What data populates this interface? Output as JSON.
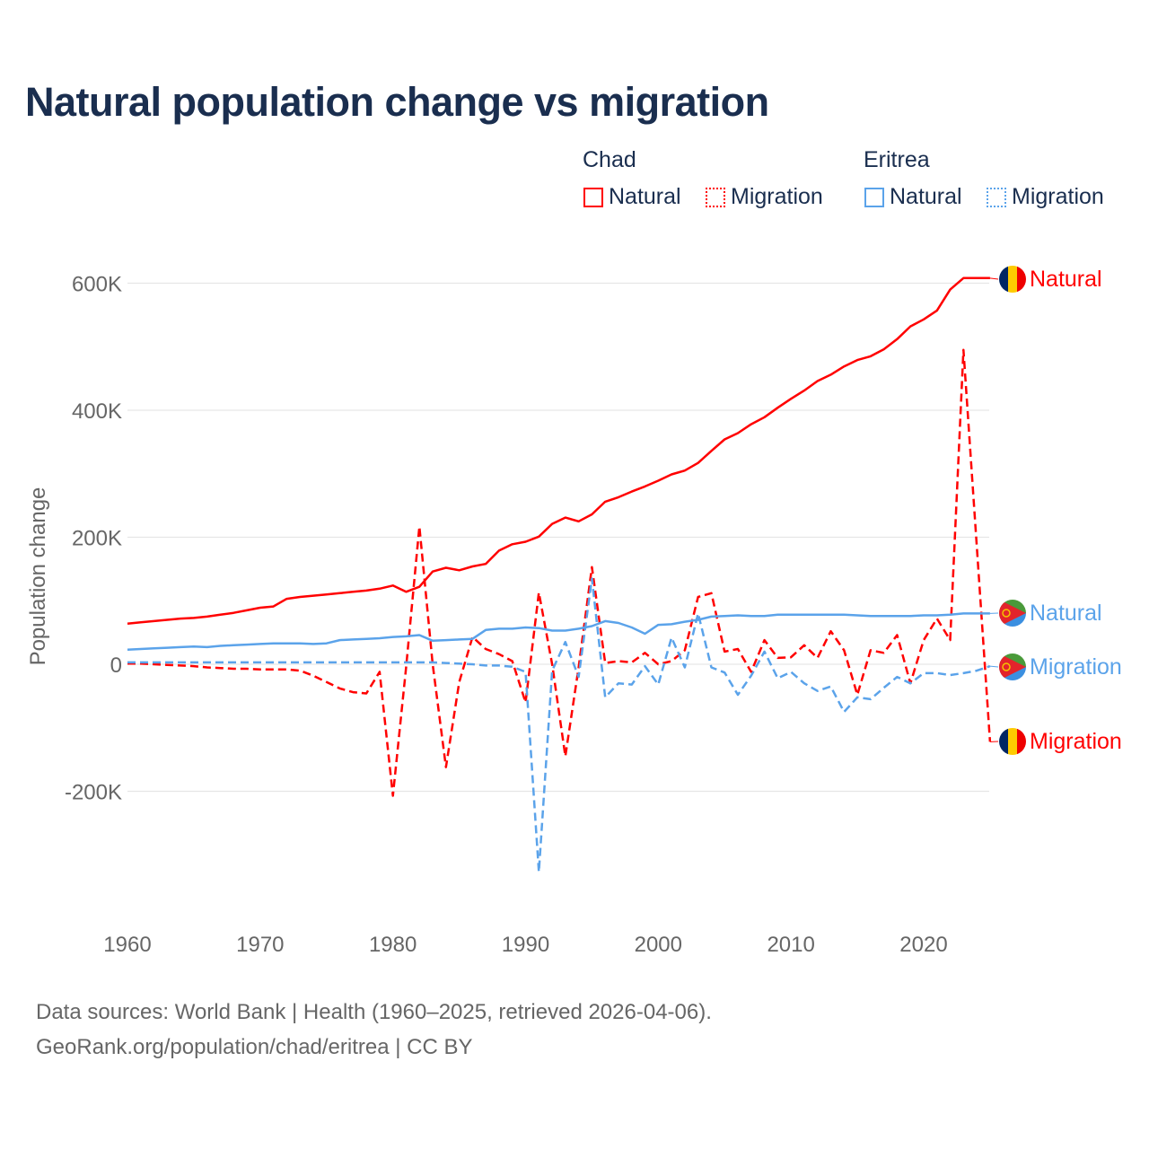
{
  "title": "Natural population change vs migration",
  "legend": {
    "groups": [
      {
        "country": "Chad",
        "items": [
          "Natural",
          "Migration"
        ]
      },
      {
        "country": "Eritrea",
        "items": [
          "Natural",
          "Migration"
        ]
      }
    ]
  },
  "footer": {
    "line1": "Data sources: World Bank | Health (1960–2025, retrieved 2026-04-06).",
    "line2": "GeoRank.org/population/chad/eritrea | CC BY"
  },
  "colors": {
    "chad": "#ff0000",
    "eritrea": "#5ba3ea",
    "grid": "#e6e6e6",
    "axis_text": "#666666"
  },
  "chart_data": {
    "type": "line",
    "title": "Natural population change vs migration",
    "xlabel": "",
    "ylabel": "Population change",
    "xlim": [
      1960,
      2025
    ],
    "ylim": [
      -350000,
      650000
    ],
    "x_ticks": [
      1960,
      1970,
      1980,
      1990,
      2000,
      2010,
      2020
    ],
    "x_tick_labels": [
      "1960",
      "1970",
      "1980",
      "1990",
      "2000",
      "2010",
      "2020"
    ],
    "y_ticks": [
      -200000,
      0,
      200000,
      400000,
      600000
    ],
    "y_tick_labels": [
      "-200K",
      "0",
      "200K",
      "400K",
      "600K"
    ],
    "grid": true,
    "legend_placement": "top-right",
    "start_year": 1960,
    "series": [
      {
        "name": "Chad Natural",
        "label": "Natural",
        "country": "Chad",
        "style": "solid",
        "color": "#ff0000",
        "values_k": [
          64,
          66,
          68,
          70,
          72,
          73,
          75,
          78,
          81,
          85,
          89,
          91,
          103,
          106,
          108,
          110,
          112,
          114,
          116,
          119,
          124,
          114,
          122,
          146,
          152,
          148,
          154,
          158,
          179,
          189,
          193,
          201,
          221,
          231,
          225,
          236,
          256,
          263,
          272,
          280,
          289,
          299,
          305,
          317,
          336,
          354,
          364,
          378,
          389,
          404,
          418,
          431,
          446,
          456,
          469,
          479,
          485,
          496,
          512,
          532,
          543,
          557,
          590,
          608,
          608,
          608
        ]
      },
      {
        "name": "Chad Migration",
        "label": "Migration",
        "country": "Chad",
        "style": "dashed",
        "color": "#ff0000",
        "values_k": [
          1,
          1,
          0,
          -1,
          -2,
          -3,
          -5,
          -6,
          -7,
          -7,
          -8,
          -8,
          -8,
          -10,
          -18,
          -28,
          -38,
          -44,
          -46,
          -12,
          -207,
          -5,
          217,
          0,
          -162,
          -28,
          43,
          24,
          16,
          5,
          -60,
          113,
          0,
          -145,
          -5,
          153,
          2,
          5,
          3,
          18,
          0,
          5,
          22,
          106,
          112,
          20,
          24,
          -12,
          38,
          10,
          11,
          30,
          10,
          52,
          22,
          -48,
          22,
          18,
          46,
          -30,
          38,
          72,
          38,
          495,
          187,
          -122
        ]
      },
      {
        "name": "Eritrea Natural",
        "label": "Natural",
        "country": "Eritrea",
        "style": "solid",
        "color": "#5ba3ea",
        "values_k": [
          23,
          24,
          25,
          26,
          27,
          28,
          27,
          29,
          30,
          31,
          32,
          33,
          33,
          33,
          32,
          33,
          38,
          39,
          40,
          41,
          43,
          44,
          46,
          37,
          38,
          39,
          40,
          54,
          56,
          56,
          58,
          57,
          53,
          53,
          56,
          60,
          68,
          65,
          58,
          48,
          62,
          63,
          67,
          70,
          75,
          76,
          77,
          76,
          76,
          78,
          78,
          78,
          78,
          78,
          78,
          77,
          76,
          76,
          76,
          76,
          77,
          77,
          78,
          80,
          80,
          80
        ]
      },
      {
        "name": "Eritrea Migration",
        "label": "Migration",
        "country": "Eritrea",
        "style": "dashed",
        "color": "#5ba3ea",
        "values_k": [
          3,
          3,
          3,
          3,
          3,
          3,
          3,
          3,
          3,
          3,
          3,
          3,
          3,
          3,
          3,
          3,
          3,
          3,
          3,
          3,
          3,
          3,
          3,
          3,
          2,
          1,
          0,
          -2,
          -2,
          -4,
          -12,
          -327,
          -10,
          35,
          -20,
          135,
          -52,
          -30,
          -32,
          -3,
          -32,
          42,
          -5,
          80,
          -5,
          -13,
          -48,
          -18,
          20,
          -22,
          -12,
          -30,
          -42,
          -35,
          -75,
          -52,
          -55,
          -37,
          -20,
          -30,
          -14,
          -14,
          -17,
          -14,
          -10,
          -3
        ]
      }
    ]
  }
}
